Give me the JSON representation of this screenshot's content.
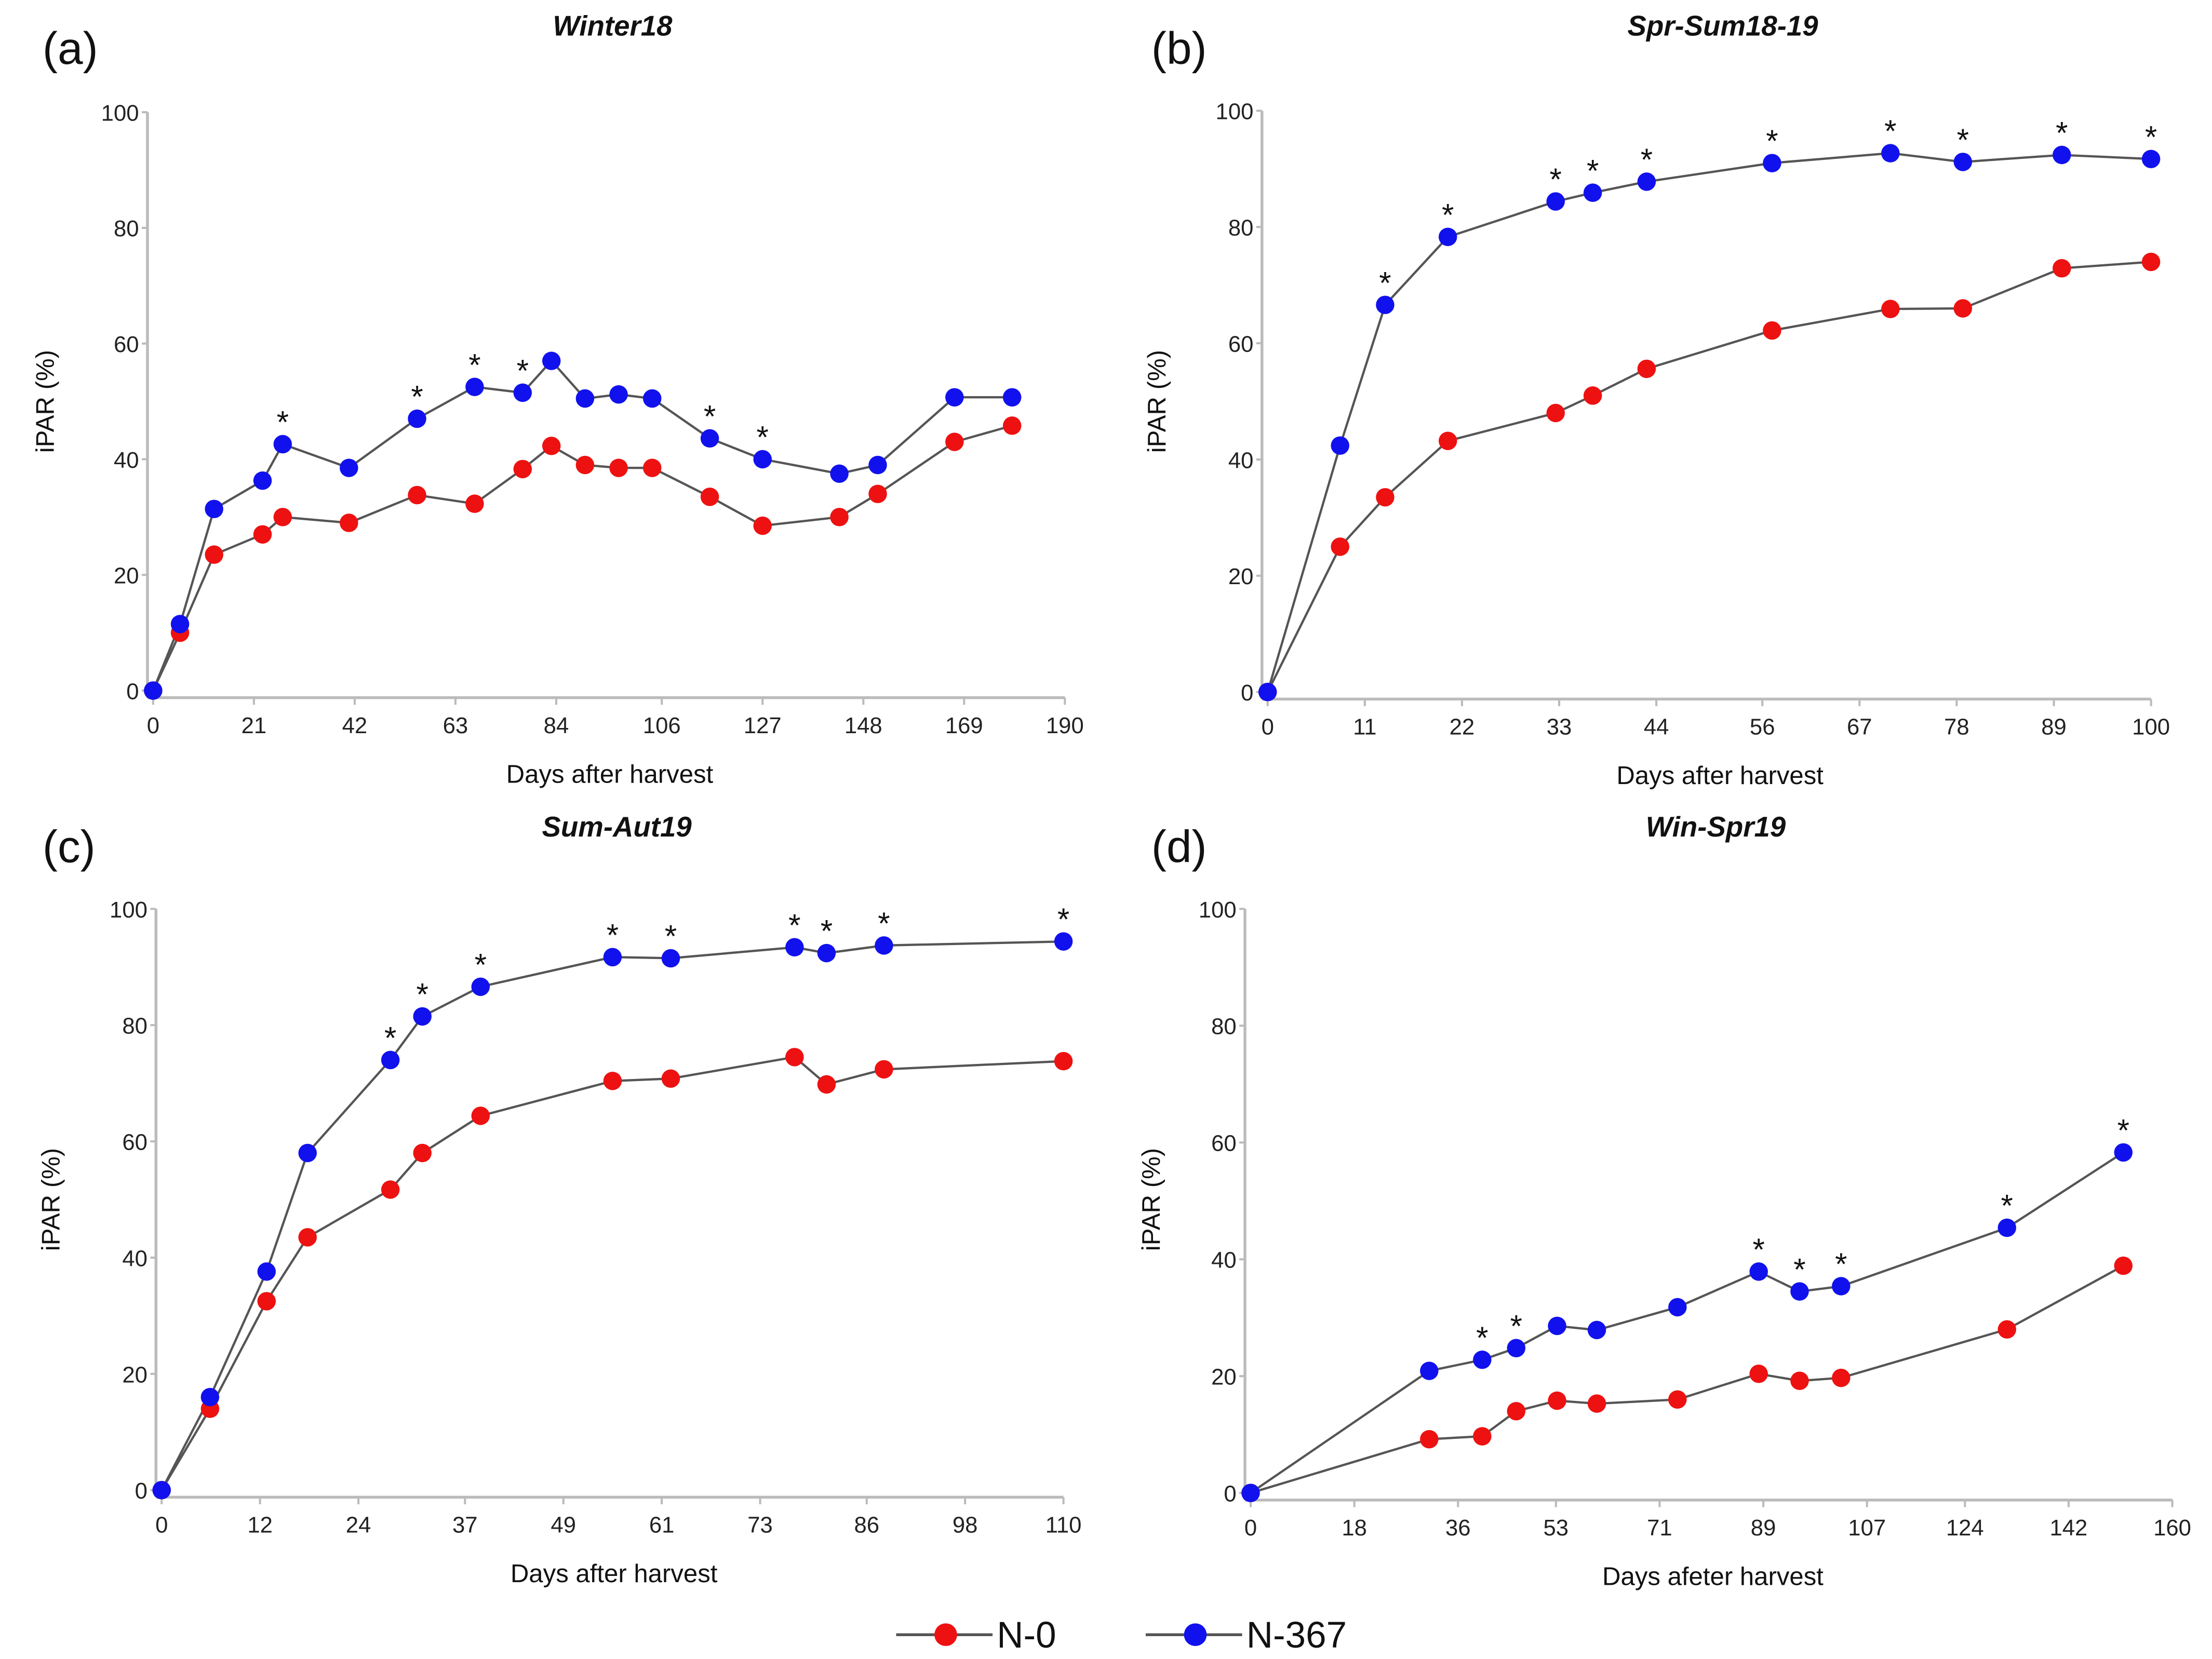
{
  "colors": {
    "n0": "#ee1111",
    "n367": "#1111ee",
    "line": "#555555",
    "axis": "#bbbbbb"
  },
  "legend": [
    {
      "name": "N-0",
      "color": "#ee1111"
    },
    {
      "name": "N-367",
      "color": "#1111ee"
    }
  ],
  "chart_data": [
    {
      "type": "line",
      "panel_label": "(a)",
      "title": "Winter18",
      "xlabel": "Days after harvest",
      "ylabel": "iPAR (%)",
      "xlim": [
        0,
        190
      ],
      "ylim": [
        0,
        100
      ],
      "xticks": [
        0,
        21,
        42,
        63,
        84,
        106,
        127,
        148,
        169,
        190
      ],
      "yticks": [
        0,
        20,
        40,
        60,
        80,
        100
      ],
      "series": [
        {
          "name": "N-0",
          "x": [
            0,
            5.6,
            12.7,
            22.8,
            27,
            40.8,
            55,
            67,
            77,
            83,
            90,
            97,
            104,
            116,
            127,
            143,
            151,
            167,
            179
          ],
          "y": [
            0,
            10,
            23.5,
            27,
            30,
            29,
            33.8,
            32.3,
            38.3,
            42.3,
            39,
            38.5,
            38.5,
            33.5,
            28.5,
            30,
            34,
            43,
            45.8
          ]
        },
        {
          "name": "N-367",
          "x": [
            0,
            5.6,
            12.7,
            22.8,
            27,
            40.8,
            55,
            67,
            77,
            83,
            90,
            97,
            104,
            116,
            127,
            143,
            151,
            167,
            179
          ],
          "y": [
            0,
            11.5,
            31.4,
            36.3,
            42.6,
            38.5,
            47,
            52.5,
            51.5,
            57,
            50.5,
            51.2,
            50.5,
            43.6,
            40,
            37.5,
            39,
            50.7,
            50.7
          ]
        }
      ],
      "significant_x": [
        27,
        55,
        67,
        77,
        116,
        127
      ],
      "significance_marker": "*"
    },
    {
      "type": "line",
      "panel_label": "(b)",
      "title": "Spr-Sum18-19",
      "xlabel": "Days after harvest",
      "ylabel": "iPAR (%)",
      "xlim": [
        0,
        100
      ],
      "ylim": [
        0,
        100
      ],
      "xticks": [
        0,
        11,
        22,
        33,
        44,
        56,
        67,
        78,
        89,
        100
      ],
      "yticks": [
        0,
        20,
        40,
        60,
        80,
        100
      ],
      "series": [
        {
          "name": "N-0",
          "x": [
            0,
            8.2,
            13.3,
            20.4,
            32.6,
            36.8,
            42.9,
            57.1,
            70.5,
            78.7,
            89.9,
            100
          ],
          "y": [
            0,
            25,
            33.5,
            43.2,
            48,
            51,
            55.6,
            62.2,
            65.9,
            66,
            72.9,
            74
          ]
        },
        {
          "name": "N-367",
          "x": [
            0,
            8.2,
            13.3,
            20.4,
            32.6,
            36.8,
            42.9,
            57.1,
            70.5,
            78.7,
            89.9,
            100
          ],
          "y": [
            0,
            42.4,
            66.6,
            78.3,
            84.4,
            85.9,
            87.8,
            91,
            92.7,
            91.2,
            92.4,
            91.7
          ]
        }
      ],
      "significant_x": [
        13.3,
        20.4,
        32.6,
        36.8,
        42.9,
        57.1,
        70.5,
        78.7,
        89.9,
        100
      ],
      "significance_marker": "*"
    },
    {
      "type": "line",
      "panel_label": "(c)",
      "title": "Sum-Aut19",
      "xlabel": "Days after harvest",
      "ylabel": "iPAR (%)",
      "xlim": [
        0,
        110
      ],
      "ylim": [
        0,
        100
      ],
      "xticks": [
        0,
        12,
        24,
        37,
        49,
        61,
        73,
        86,
        98,
        110
      ],
      "yticks": [
        0,
        20,
        40,
        60,
        80,
        100
      ],
      "series": [
        {
          "name": "N-0",
          "x": [
            0,
            5.9,
            12.8,
            17.8,
            27.9,
            31.8,
            38.9,
            55,
            62.1,
            77.2,
            81.1,
            88.1,
            110
          ],
          "y": [
            0,
            14,
            32.5,
            43.5,
            51.7,
            58,
            64.4,
            70.4,
            70.8,
            74.5,
            69.8,
            72.4,
            73.8
          ]
        },
        {
          "name": "N-367",
          "x": [
            0,
            5.9,
            12.8,
            17.8,
            27.9,
            31.8,
            38.9,
            55,
            62.1,
            77.2,
            81.1,
            88.1,
            110
          ],
          "y": [
            0,
            16,
            37.6,
            58,
            74,
            81.5,
            86.6,
            91.7,
            91.5,
            93.4,
            92.4,
            93.7,
            94.4
          ]
        }
      ],
      "significant_x": [
        27.9,
        31.8,
        38.9,
        55,
        62.1,
        77.2,
        81.1,
        88.1,
        110
      ],
      "significance_marker": "*"
    },
    {
      "type": "line",
      "panel_label": "(d)",
      "title": "Win-Spr19",
      "xlabel": "Days afeter harvest",
      "ylabel": "iPAR (%)",
      "xlim": [
        0,
        160
      ],
      "ylim": [
        0,
        100
      ],
      "xticks": [
        0,
        18,
        36,
        53,
        71,
        89,
        107,
        124,
        142,
        160
      ],
      "yticks": [
        0,
        20,
        40,
        60,
        80,
        100
      ],
      "series": [
        {
          "name": "N-0",
          "x": [
            0,
            31,
            40.2,
            46.1,
            53.2,
            60.1,
            74.1,
            88.2,
            95.3,
            102.5,
            131.3,
            151.5
          ],
          "y": [
            0,
            9.2,
            9.7,
            14,
            15.8,
            15.3,
            16,
            20.4,
            19.2,
            19.7,
            28,
            38.9
          ]
        },
        {
          "name": "N-367",
          "x": [
            0,
            31,
            40.2,
            46.1,
            53.2,
            60.1,
            74.1,
            88.2,
            95.3,
            102.5,
            131.3,
            151.5
          ],
          "y": [
            0,
            20.9,
            22.8,
            24.8,
            28.6,
            27.9,
            31.8,
            37.9,
            34.5,
            35.4,
            45.4,
            58.3
          ]
        }
      ],
      "significant_x": [
        40.2,
        46.1,
        88.2,
        95.3,
        102.5,
        131.3,
        151.5
      ],
      "significance_marker": "*"
    }
  ]
}
